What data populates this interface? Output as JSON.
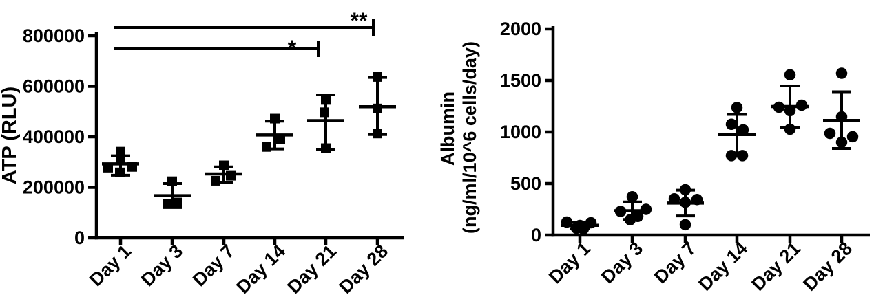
{
  "figure": {
    "description": "Two dot plots: ATP (RLU) and Albumin secretion over culture days, mean with SD error bars",
    "colors": {
      "ink": "#000000",
      "background": "#ffffff"
    }
  },
  "chart_data": [
    {
      "id": "atp",
      "type": "scatter",
      "marker": "square",
      "title": "",
      "xlabel": "",
      "ylabel": "ATP (RLU)",
      "ylabel_lines": [
        "ATP (RLU)"
      ],
      "categories": [
        "Day 1",
        "Day 3",
        "Day 7",
        "Day 14",
        "Day 21",
        "Day 28"
      ],
      "ylim": [
        0,
        800000
      ],
      "yticks": [
        0,
        200000,
        400000,
        600000,
        800000
      ],
      "ytick_labels": [
        "0",
        "200000",
        "400000",
        "600000",
        "800000"
      ],
      "grid": false,
      "legend": null,
      "error_style": "mean ± SD",
      "groups": [
        {
          "category": "Day 1",
          "values": [
            341000,
            308000,
            281000,
            278000,
            259000
          ],
          "jitter": [
            0,
            0,
            17,
            -18,
            -1
          ],
          "mean": 293000,
          "sd_low": 248000,
          "sd_high": 325000
        },
        {
          "category": "Day 3",
          "values": [
            224000,
            140000,
            136000
          ],
          "jitter": [
            0,
            7,
            -7
          ],
          "mean": 167000,
          "sd_low": 120000,
          "sd_high": 215000
        },
        {
          "category": "Day 7",
          "values": [
            287000,
            246000,
            226000
          ],
          "jitter": [
            0,
            10,
            -12
          ],
          "mean": 253000,
          "sd_low": 218000,
          "sd_high": 281000
        },
        {
          "category": "Day 14",
          "values": [
            472000,
            390000,
            360000
          ],
          "jitter": [
            0,
            8,
            -12
          ],
          "mean": 407000,
          "sd_low": 352000,
          "sd_high": 462000
        },
        {
          "category": "Day 21",
          "values": [
            546000,
            497000,
            355000
          ],
          "jitter": [
            0,
            -2,
            0
          ],
          "mean": 464000,
          "sd_low": 349000,
          "sd_high": 566000
        },
        {
          "category": "Day 28",
          "values": [
            637000,
            512000,
            413000
          ],
          "jitter": [
            0,
            0,
            0
          ],
          "mean": 519000,
          "sd_low": 409000,
          "sd_high": 635000
        }
      ],
      "significance": [
        {
          "from": "Day 1",
          "to": "Day 28",
          "label": "**"
        },
        {
          "from": "Day 1",
          "to": "Day 21",
          "label": "*"
        }
      ]
    },
    {
      "id": "albumin",
      "type": "scatter",
      "marker": "circle",
      "title": "",
      "xlabel": "",
      "ylabel": "Albumin (ng/ml/10^6 cells/day)",
      "ylabel_lines": [
        "Albumin",
        "(ng/ml/10^6 cells/day)"
      ],
      "categories": [
        "Day 1",
        "Day 3",
        "Day 7",
        "Day 14",
        "Day 21",
        "Day 28"
      ],
      "ylim": [
        0,
        2000
      ],
      "yticks": [
        0,
        500,
        1000,
        1500,
        2000
      ],
      "ytick_labels": [
        "0",
        "500",
        "1000",
        "1500",
        "2000"
      ],
      "grid": false,
      "legend": null,
      "error_style": "mean ± SD",
      "groups": [
        {
          "category": "Day 1",
          "values": [
            127,
            120,
            93,
            67,
            60
          ],
          "jitter": [
            -19,
            16,
            0,
            -5,
            5
          ],
          "mean": 95,
          "sd_low": 65,
          "sd_high": 125
        },
        {
          "category": "Day 3",
          "values": [
            372,
            250,
            230,
            182,
            149
          ],
          "jitter": [
            0,
            20,
            -17,
            8,
            -3
          ],
          "mean": 237,
          "sd_low": 152,
          "sd_high": 322
        },
        {
          "category": "Day 7",
          "values": [
            440,
            352,
            345,
            318,
            101
          ],
          "jitter": [
            0,
            -16,
            17,
            0,
            0
          ],
          "mean": 311,
          "sd_low": 186,
          "sd_high": 436
        },
        {
          "category": "Day 14",
          "values": [
            1237,
            1075,
            1021,
            771,
            771
          ],
          "jitter": [
            0,
            -8,
            9,
            -8,
            8
          ],
          "mean": 975,
          "sd_low": 780,
          "sd_high": 1170
        },
        {
          "category": "Day 21",
          "values": [
            1555,
            1260,
            1240,
            1207,
            1027
          ],
          "jitter": [
            0,
            17,
            -16,
            0,
            0
          ],
          "mean": 1247,
          "sd_low": 1047,
          "sd_high": 1447
        },
        {
          "category": "Day 28",
          "values": [
            1570,
            1147,
            987,
            954,
            900
          ],
          "jitter": [
            0,
            0,
            -17,
            16,
            0
          ],
          "mean": 1112,
          "sd_low": 840,
          "sd_high": 1390
        }
      ],
      "significance": []
    }
  ]
}
